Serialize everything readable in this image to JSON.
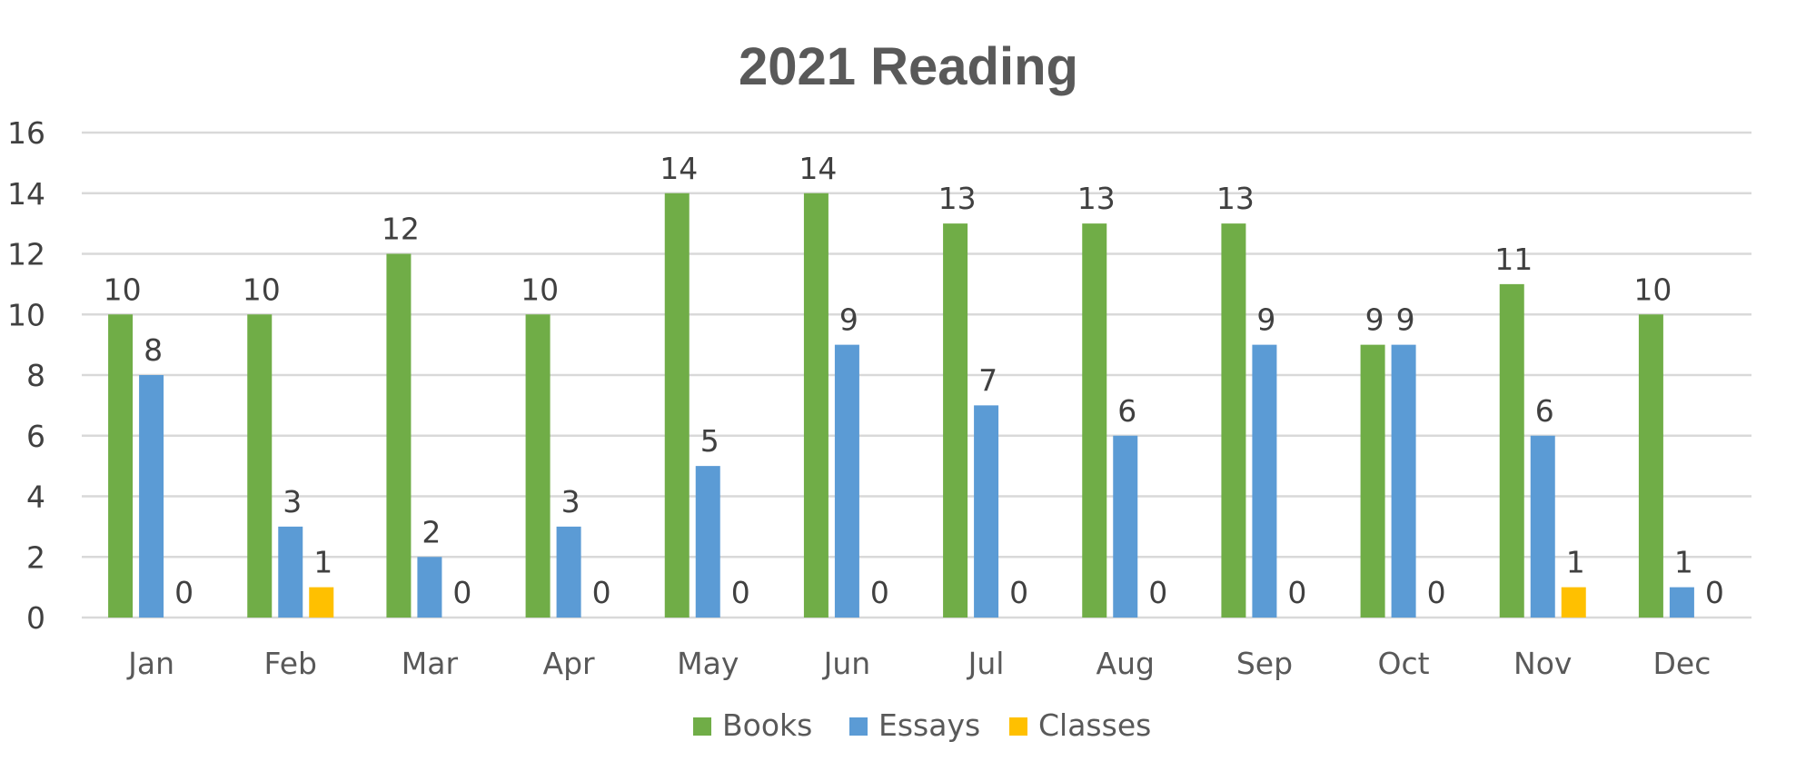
{
  "chart_data": {
    "type": "bar",
    "title": "2021 Reading",
    "xlabel": "",
    "ylabel": "",
    "ylim": [
      0,
      16
    ],
    "yticks": [
      0,
      2,
      4,
      6,
      8,
      10,
      12,
      14,
      16
    ],
    "grid": true,
    "legend_position": "bottom",
    "categories": [
      "Jan",
      "Feb",
      "Mar",
      "Apr",
      "May",
      "Jun",
      "Jul",
      "Aug",
      "Sep",
      "Oct",
      "Nov",
      "Dec"
    ],
    "series": [
      {
        "name": "Books",
        "color": "#70ad47",
        "values": [
          10,
          10,
          12,
          10,
          14,
          14,
          13,
          13,
          13,
          9,
          11,
          10
        ]
      },
      {
        "name": "Essays",
        "color": "#5b9bd5",
        "values": [
          8,
          3,
          2,
          3,
          5,
          9,
          7,
          6,
          9,
          9,
          6,
          1
        ]
      },
      {
        "name": "Classes",
        "color": "#ffc000",
        "values": [
          0,
          1,
          0,
          0,
          0,
          0,
          0,
          0,
          0,
          0,
          1,
          0
        ]
      }
    ]
  }
}
